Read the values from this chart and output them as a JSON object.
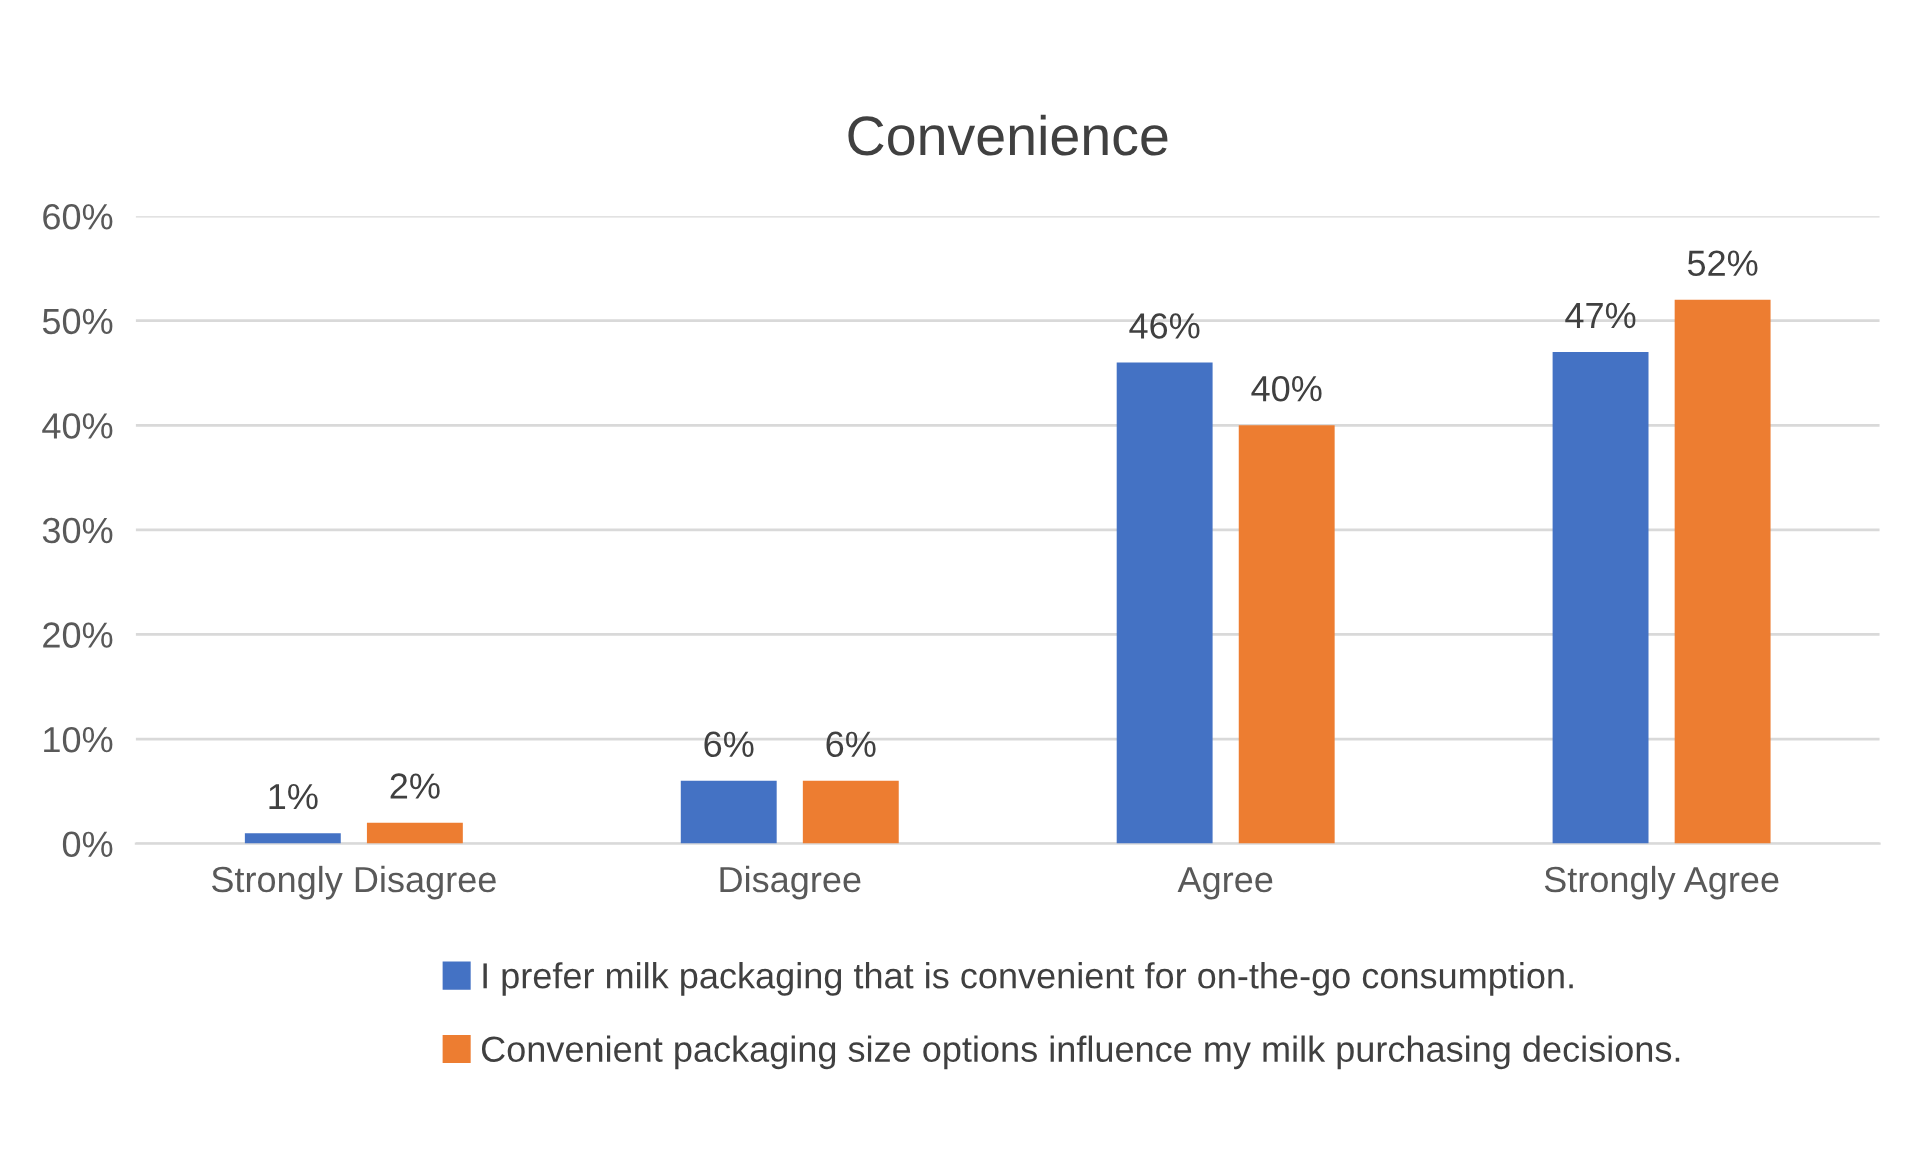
{
  "chart_data": {
    "type": "bar",
    "title": "Convenience",
    "categories": [
      "Strongly Disagree",
      "Disagree",
      "Agree",
      "Strongly Agree"
    ],
    "series": [
      {
        "name": "I prefer milk packaging that is convenient for on-the-go consumption.",
        "color": "#4472c4",
        "values": [
          1,
          6,
          46,
          47
        ],
        "value_labels": [
          "1%",
          "6%",
          "46%",
          "47%"
        ]
      },
      {
        "name": "Convenient packaging size options influence my milk purchasing decisions.",
        "color": "#ed7d31",
        "values": [
          2,
          6,
          40,
          52
        ],
        "value_labels": [
          "2%",
          "6%",
          "40%",
          "52%"
        ]
      }
    ],
    "ylim": [
      0,
      60
    ],
    "yticks": [
      {
        "value": 0,
        "label": "0%"
      },
      {
        "value": 10,
        "label": "10%"
      },
      {
        "value": 20,
        "label": "20%"
      },
      {
        "value": 30,
        "label": "30%"
      },
      {
        "value": 40,
        "label": "40%"
      },
      {
        "value": 50,
        "label": "50%"
      },
      {
        "value": 60,
        "label": "60%"
      }
    ],
    "grid": "y",
    "legend": "bottom"
  }
}
